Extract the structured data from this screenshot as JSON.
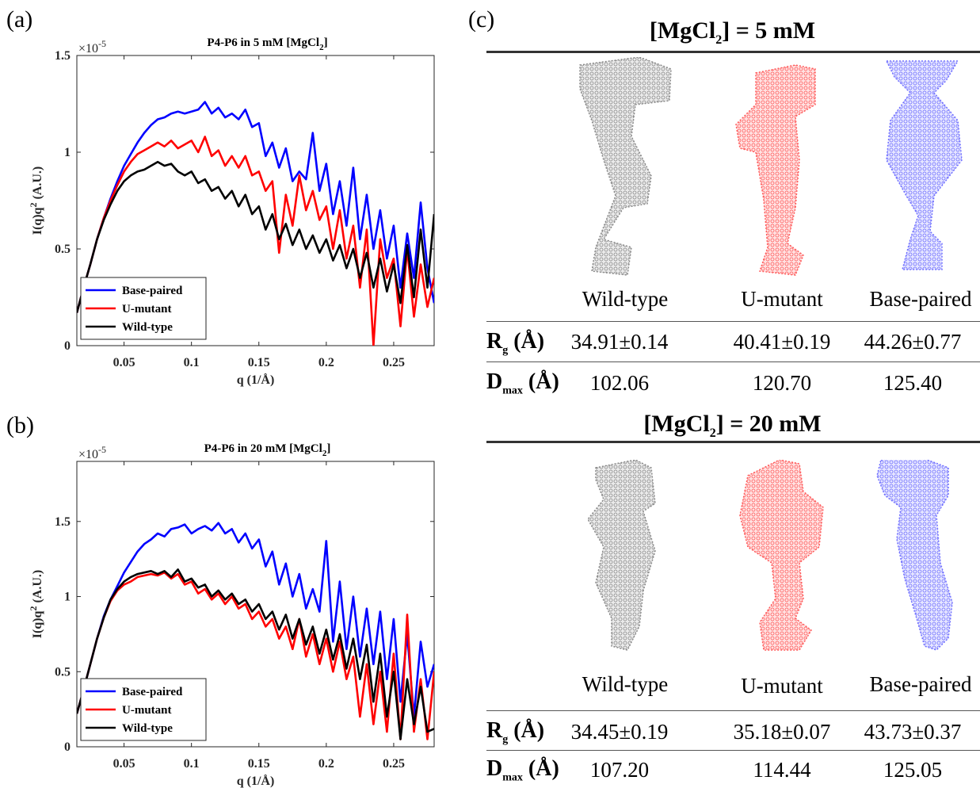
{
  "chart_data": [
    {
      "type": "line",
      "panel": "(a)",
      "title": "P4-P6 in 5 mM [MgCl2]",
      "title_main": "P4-P6 in 5 mM [MgCl",
      "title_sub": "2",
      "title_end": "]",
      "xlabel": "q (1/Å)",
      "ylabel": "I(q)q",
      "ylabel_sup": "2",
      "ylabel_end": " (A.U.)",
      "multiplier": "×10",
      "multiplier_exp": "-5",
      "xlim": [
        0.015,
        0.28
      ],
      "ylim": [
        0,
        1.5
      ],
      "xticks": [
        "0.05",
        "0.1",
        "0.15",
        "0.2",
        "0.25"
      ],
      "yticks": [
        "0",
        "0.5",
        "1",
        "1.5"
      ],
      "legend_placement": "bottom-left",
      "series": [
        {
          "name": "Base-paired",
          "color": "#0000ff",
          "x": [
            0.015,
            0.02,
            0.025,
            0.03,
            0.035,
            0.04,
            0.045,
            0.05,
            0.055,
            0.06,
            0.065,
            0.07,
            0.075,
            0.08,
            0.085,
            0.09,
            0.095,
            0.1,
            0.105,
            0.11,
            0.115,
            0.12,
            0.125,
            0.13,
            0.135,
            0.14,
            0.145,
            0.15,
            0.155,
            0.16,
            0.165,
            0.17,
            0.175,
            0.18,
            0.185,
            0.19,
            0.195,
            0.2,
            0.205,
            0.21,
            0.215,
            0.22,
            0.225,
            0.23,
            0.235,
            0.24,
            0.245,
            0.25,
            0.255,
            0.26,
            0.265,
            0.27,
            0.275,
            0.28
          ],
          "y": [
            0.17,
            0.3,
            0.42,
            0.55,
            0.66,
            0.76,
            0.85,
            0.93,
            0.99,
            1.05,
            1.1,
            1.14,
            1.17,
            1.18,
            1.2,
            1.21,
            1.2,
            1.21,
            1.22,
            1.26,
            1.2,
            1.23,
            1.18,
            1.2,
            1.17,
            1.22,
            1.13,
            1.15,
            0.98,
            1.05,
            0.92,
            1.02,
            0.85,
            0.9,
            0.86,
            1.1,
            0.8,
            0.94,
            0.68,
            0.85,
            0.62,
            0.92,
            0.55,
            0.78,
            0.5,
            0.7,
            0.45,
            0.62,
            0.3,
            0.58,
            0.35,
            0.74,
            0.4,
            0.22
          ]
        },
        {
          "name": "U-mutant",
          "color": "#ff0000",
          "x": [
            0.015,
            0.02,
            0.025,
            0.03,
            0.035,
            0.04,
            0.045,
            0.05,
            0.055,
            0.06,
            0.065,
            0.07,
            0.075,
            0.08,
            0.085,
            0.09,
            0.095,
            0.1,
            0.105,
            0.11,
            0.115,
            0.12,
            0.125,
            0.13,
            0.135,
            0.14,
            0.145,
            0.15,
            0.155,
            0.16,
            0.165,
            0.17,
            0.175,
            0.18,
            0.185,
            0.19,
            0.195,
            0.2,
            0.205,
            0.21,
            0.215,
            0.22,
            0.225,
            0.23,
            0.235,
            0.24,
            0.245,
            0.25,
            0.255,
            0.26,
            0.265,
            0.27,
            0.275,
            0.28
          ],
          "y": [
            0.17,
            0.3,
            0.42,
            0.55,
            0.66,
            0.75,
            0.83,
            0.9,
            0.95,
            0.99,
            1.01,
            1.03,
            1.05,
            1.03,
            1.06,
            1.02,
            1.04,
            1.06,
            1.0,
            1.08,
            0.98,
            1.01,
            0.93,
            0.98,
            0.92,
            0.98,
            0.88,
            0.9,
            0.8,
            0.85,
            0.48,
            0.78,
            0.62,
            0.88,
            0.7,
            0.8,
            0.65,
            0.72,
            0.5,
            0.7,
            0.45,
            0.62,
            0.3,
            0.6,
            0.0,
            0.55,
            0.35,
            0.45,
            0.1,
            0.5,
            0.15,
            0.42,
            0.2,
            0.35
          ]
        },
        {
          "name": "Wild-type",
          "color": "#000000",
          "x": [
            0.015,
            0.02,
            0.025,
            0.03,
            0.035,
            0.04,
            0.045,
            0.05,
            0.055,
            0.06,
            0.065,
            0.07,
            0.075,
            0.08,
            0.085,
            0.09,
            0.095,
            0.1,
            0.105,
            0.11,
            0.115,
            0.12,
            0.125,
            0.13,
            0.135,
            0.14,
            0.145,
            0.15,
            0.155,
            0.16,
            0.165,
            0.17,
            0.175,
            0.18,
            0.185,
            0.19,
            0.195,
            0.2,
            0.205,
            0.21,
            0.215,
            0.22,
            0.225,
            0.23,
            0.235,
            0.24,
            0.245,
            0.25,
            0.255,
            0.26,
            0.265,
            0.27,
            0.275,
            0.28
          ],
          "y": [
            0.17,
            0.3,
            0.42,
            0.55,
            0.65,
            0.73,
            0.8,
            0.85,
            0.88,
            0.9,
            0.91,
            0.93,
            0.95,
            0.93,
            0.94,
            0.9,
            0.88,
            0.9,
            0.84,
            0.86,
            0.8,
            0.82,
            0.76,
            0.8,
            0.72,
            0.78,
            0.68,
            0.72,
            0.6,
            0.68,
            0.55,
            0.63,
            0.52,
            0.6,
            0.5,
            0.57,
            0.48,
            0.55,
            0.44,
            0.52,
            0.4,
            0.5,
            0.35,
            0.48,
            0.3,
            0.45,
            0.28,
            0.42,
            0.22,
            0.52,
            0.25,
            0.6,
            0.3,
            0.68
          ]
        }
      ]
    },
    {
      "type": "line",
      "panel": "(b)",
      "title": "P4-P6 in 20 mM [MgCl2]",
      "title_main": "P4-P6 in 20 mM [MgCl",
      "title_sub": "2",
      "title_end": "]",
      "xlabel": "q (1/Å)",
      "ylabel": "I(q)q",
      "ylabel_sup": "2",
      "ylabel_end": " (A.U.)",
      "multiplier": "×10",
      "multiplier_exp": "-5",
      "xlim": [
        0.015,
        0.28
      ],
      "ylim": [
        0,
        1.9
      ],
      "xticks": [
        "0.05",
        "0.1",
        "0.15",
        "0.2",
        "0.25"
      ],
      "yticks": [
        "0",
        "0.5",
        "1",
        "1.5"
      ],
      "legend_placement": "bottom-left",
      "series": [
        {
          "name": "Base-paired",
          "color": "#0000ff",
          "x": [
            0.015,
            0.02,
            0.025,
            0.03,
            0.035,
            0.04,
            0.045,
            0.05,
            0.055,
            0.06,
            0.065,
            0.07,
            0.075,
            0.08,
            0.085,
            0.09,
            0.095,
            0.1,
            0.105,
            0.11,
            0.115,
            0.12,
            0.125,
            0.13,
            0.135,
            0.14,
            0.145,
            0.15,
            0.155,
            0.16,
            0.165,
            0.17,
            0.175,
            0.18,
            0.185,
            0.19,
            0.195,
            0.2,
            0.205,
            0.21,
            0.215,
            0.22,
            0.225,
            0.23,
            0.235,
            0.24,
            0.245,
            0.25,
            0.255,
            0.26,
            0.265,
            0.27,
            0.275,
            0.28
          ],
          "y": [
            0.22,
            0.38,
            0.55,
            0.72,
            0.87,
            0.98,
            1.07,
            1.16,
            1.23,
            1.3,
            1.35,
            1.38,
            1.42,
            1.4,
            1.45,
            1.46,
            1.48,
            1.42,
            1.45,
            1.47,
            1.44,
            1.49,
            1.42,
            1.45,
            1.36,
            1.42,
            1.32,
            1.38,
            1.2,
            1.3,
            1.08,
            1.22,
            1.0,
            1.15,
            0.92,
            1.05,
            0.9,
            1.37,
            0.7,
            1.1,
            0.65,
            1.0,
            0.6,
            0.92,
            0.55,
            0.9,
            0.45,
            0.85,
            0.3,
            0.75,
            0.2,
            0.7,
            0.4,
            0.55
          ]
        },
        {
          "name": "U-mutant",
          "color": "#ff0000",
          "x": [
            0.015,
            0.02,
            0.025,
            0.03,
            0.035,
            0.04,
            0.045,
            0.05,
            0.055,
            0.06,
            0.065,
            0.07,
            0.075,
            0.08,
            0.085,
            0.09,
            0.095,
            0.1,
            0.105,
            0.11,
            0.115,
            0.12,
            0.125,
            0.13,
            0.135,
            0.14,
            0.145,
            0.15,
            0.155,
            0.16,
            0.165,
            0.17,
            0.175,
            0.18,
            0.185,
            0.19,
            0.195,
            0.2,
            0.205,
            0.21,
            0.215,
            0.22,
            0.225,
            0.23,
            0.235,
            0.24,
            0.245,
            0.25,
            0.255,
            0.26,
            0.265,
            0.27,
            0.275,
            0.28
          ],
          "y": [
            0.22,
            0.38,
            0.55,
            0.72,
            0.86,
            0.97,
            1.04,
            1.08,
            1.1,
            1.13,
            1.14,
            1.15,
            1.14,
            1.16,
            1.12,
            1.15,
            1.08,
            1.1,
            1.02,
            1.05,
            0.98,
            1.02,
            0.95,
            1.0,
            0.92,
            0.95,
            0.85,
            0.9,
            0.8,
            0.85,
            0.72,
            0.8,
            0.65,
            0.85,
            0.6,
            0.75,
            0.55,
            0.72,
            0.5,
            0.7,
            0.45,
            0.6,
            0.2,
            0.55,
            0.15,
            0.5,
            0.1,
            0.62,
            0.05,
            0.88,
            0.1,
            0.45,
            0.05,
            0.5
          ]
        },
        {
          "name": "Wild-type",
          "color": "#000000",
          "x": [
            0.015,
            0.02,
            0.025,
            0.03,
            0.035,
            0.04,
            0.045,
            0.05,
            0.055,
            0.06,
            0.065,
            0.07,
            0.075,
            0.08,
            0.085,
            0.09,
            0.095,
            0.1,
            0.105,
            0.11,
            0.115,
            0.12,
            0.125,
            0.13,
            0.135,
            0.14,
            0.145,
            0.15,
            0.155,
            0.16,
            0.165,
            0.17,
            0.175,
            0.18,
            0.185,
            0.19,
            0.195,
            0.2,
            0.205,
            0.21,
            0.215,
            0.22,
            0.225,
            0.23,
            0.235,
            0.24,
            0.245,
            0.25,
            0.255,
            0.26,
            0.265,
            0.27,
            0.275,
            0.28
          ],
          "y": [
            0.22,
            0.38,
            0.55,
            0.72,
            0.86,
            0.98,
            1.05,
            1.1,
            1.13,
            1.15,
            1.16,
            1.17,
            1.15,
            1.17,
            1.13,
            1.18,
            1.1,
            1.12,
            1.06,
            1.08,
            1.0,
            1.04,
            0.98,
            1.02,
            0.95,
            0.98,
            0.9,
            0.95,
            0.85,
            0.9,
            0.78,
            0.88,
            0.72,
            0.85,
            0.68,
            0.8,
            0.62,
            0.78,
            0.58,
            0.75,
            0.52,
            0.72,
            0.45,
            0.68,
            0.3,
            0.62,
            0.2,
            0.5,
            0.05,
            0.45,
            0.15,
            0.4,
            0.1,
            0.12
          ]
        }
      ]
    }
  ],
  "panel_c": {
    "letter": "(c)",
    "conditions": [
      {
        "title_main": "[MgCl",
        "title_sub": "2",
        "title_end": "] = 5 mM",
        "names": [
          "Wild-type",
          "U-mutant",
          "Base-paired"
        ],
        "colors": [
          "#8a8a8a",
          "#ff5a5a",
          "#7070ff"
        ],
        "rg_label": "R",
        "rg_sub": "g",
        "rg_unit": " (Å)",
        "rg": [
          "34.91±0.14",
          "40.41±0.19",
          "44.26±0.77"
        ],
        "dmax_label": "D",
        "dmax_sub": "max",
        "dmax_unit": " (Å)",
        "dmax": [
          "102.06",
          "120.70",
          "125.40"
        ]
      },
      {
        "title_main": "[MgCl",
        "title_sub": "2",
        "title_end": "] = 20 mM",
        "names": [
          "Wild-type",
          "U-mutant",
          "Base-paired"
        ],
        "colors": [
          "#8a8a8a",
          "#ff5a5a",
          "#7070ff"
        ],
        "rg_label": "R",
        "rg_sub": "g",
        "rg_unit": " (Å)",
        "rg": [
          "34.45±0.19",
          "35.18±0.07",
          "43.73±0.37"
        ],
        "dmax_label": "D",
        "dmax_sub": "max",
        "dmax_unit": " (Å)",
        "dmax": [
          "107.20",
          "114.44",
          "125.05"
        ]
      }
    ]
  }
}
